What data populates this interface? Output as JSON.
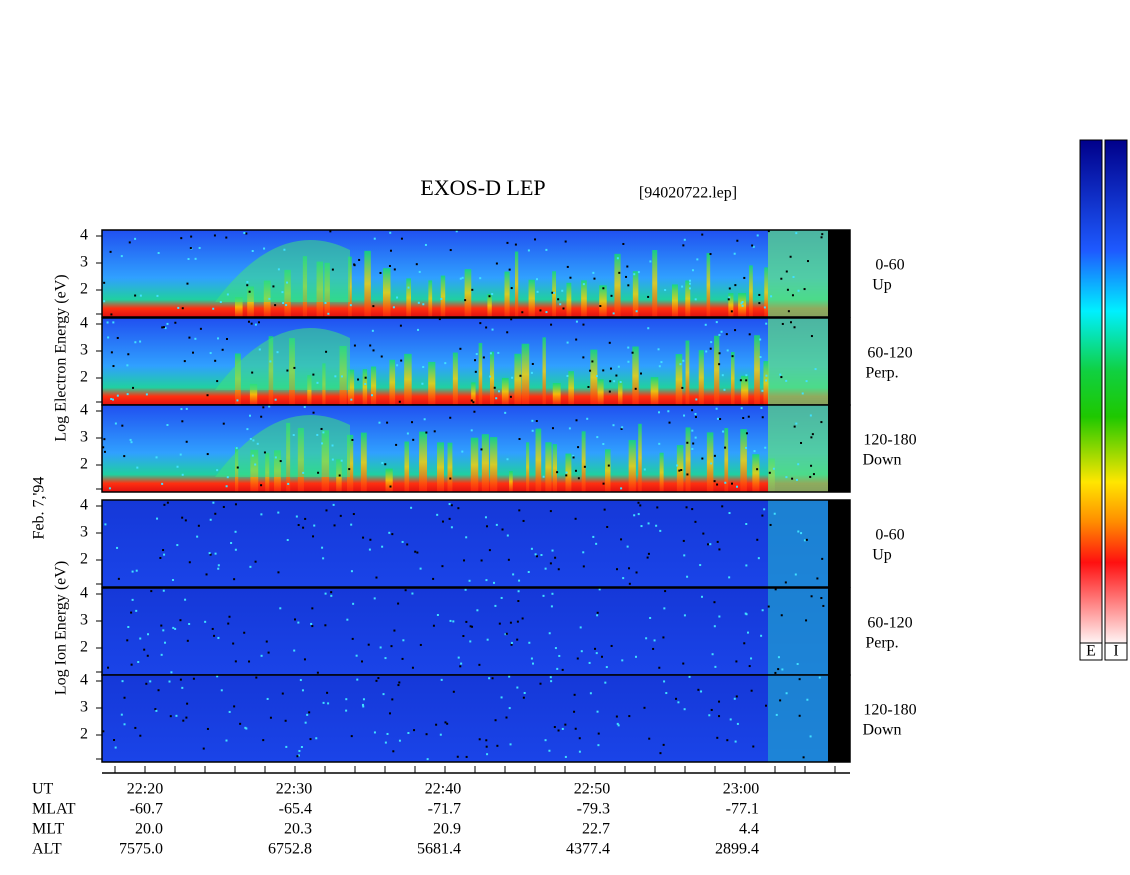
{
  "header": {
    "title": "EXOS-D LEP",
    "file": "[94020722.lep]"
  },
  "date": "Feb. 7,'94",
  "groups": [
    {
      "axis_label": "Log Electron Energy (eV)",
      "panels": [
        {
          "yticks": [
            "4",
            "3",
            "2"
          ],
          "range": "0-60",
          "direction": "Up"
        },
        {
          "yticks": [
            "4",
            "3",
            "2"
          ],
          "range": "60-120",
          "direction": "Perp."
        },
        {
          "yticks": [
            "4",
            "3",
            "2"
          ],
          "range": "120-180",
          "direction": "Down"
        }
      ]
    },
    {
      "axis_label": "Log Ion Energy (eV)",
      "panels": [
        {
          "yticks": [
            "4",
            "3",
            "2"
          ],
          "range": "0-60",
          "direction": "Up"
        },
        {
          "yticks": [
            "4",
            "3",
            "2"
          ],
          "range": "60-120",
          "direction": "Perp."
        },
        {
          "yticks": [
            "4",
            "3",
            "2"
          ],
          "range": "120-180",
          "direction": "Down"
        }
      ]
    }
  ],
  "ephemeris": {
    "rows": [
      [
        "UT",
        "22:20",
        "22:30",
        "22:40",
        "22:50",
        "23:00"
      ],
      [
        "MLAT",
        "-60.7",
        "-65.4",
        "-71.7",
        "-79.3",
        "-77.1"
      ],
      [
        "MLT",
        "20.0",
        "20.3",
        "20.9",
        "22.7",
        "4.4"
      ],
      [
        "ALT",
        "7575.0",
        "6752.8",
        "5681.4",
        "4377.4",
        "2899.4"
      ]
    ]
  },
  "colorbars": [
    "E",
    "I"
  ]
}
